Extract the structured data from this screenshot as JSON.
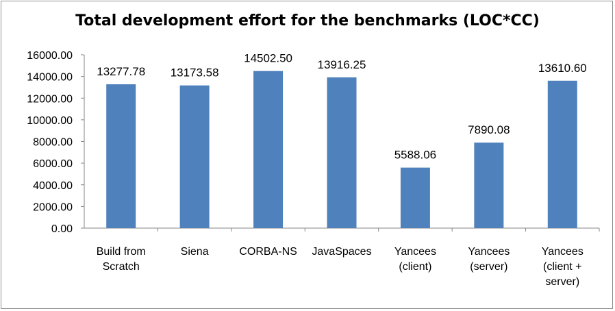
{
  "chart_data": {
    "type": "bar",
    "title": "Total development effort for the benchmarks (LOC*CC)",
    "categories": [
      [
        "Build from",
        "Scratch"
      ],
      [
        "Siena"
      ],
      [
        "CORBA-NS"
      ],
      [
        "JavaSpaces"
      ],
      [
        "Yancees",
        "(client)"
      ],
      [
        "Yancees",
        "(server)"
      ],
      [
        "Yancees",
        "(client +",
        "server)"
      ]
    ],
    "values": [
      13277.78,
      13173.58,
      14502.5,
      13916.25,
      5588.06,
      7890.08,
      13610.6
    ],
    "value_labels": [
      "13277.78",
      "13173.58",
      "14502.50",
      "13916.25",
      "5588.06",
      "7890.08",
      "13610.60"
    ],
    "ylim": [
      0,
      16000
    ],
    "yticks": [
      "0.00",
      "2000.00",
      "4000.00",
      "6000.00",
      "8000.00",
      "10000.00",
      "12000.00",
      "14000.00",
      "16000.00"
    ],
    "bar_color": "#4f81bd",
    "grid": false,
    "legend": "none"
  }
}
